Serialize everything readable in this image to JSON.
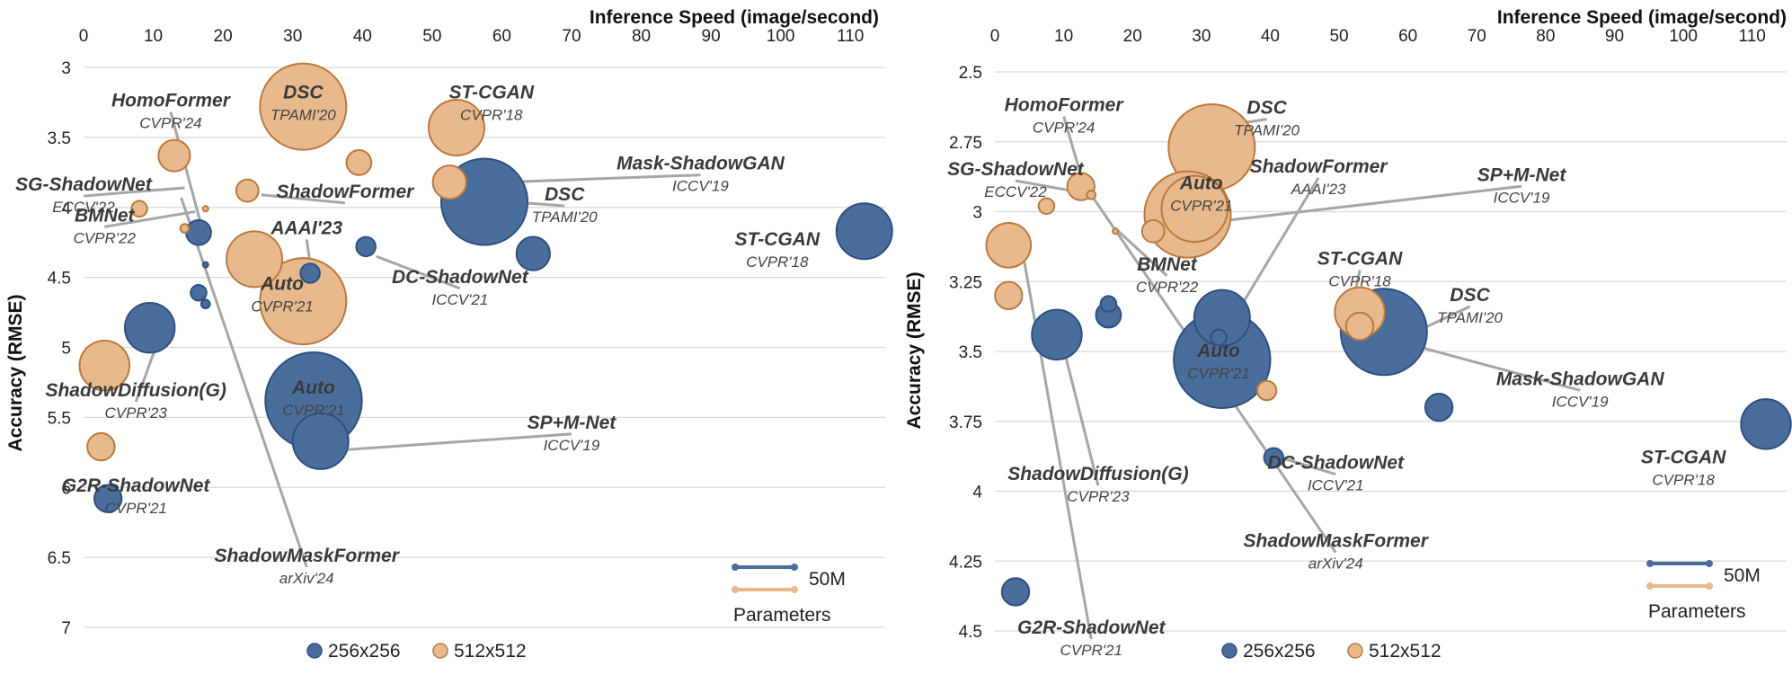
{
  "colors": {
    "c256": "#4a6e9c",
    "c256_stroke": "#2f4f7f",
    "c512": "#e8b98c",
    "c512_stroke": "#b97a3e",
    "leader": "#a6a6a6"
  },
  "chart_data": [
    {
      "type": "scatter",
      "xlabel": "Inference Speed (image/second)",
      "ylabel": "Accuracy (RMSE)",
      "xlim": [
        0,
        115
      ],
      "ylim": [
        3,
        7
      ],
      "xticks": [
        "0",
        "10",
        "20",
        "30",
        "40",
        "50",
        "60",
        "70",
        "80",
        "90",
        "100",
        "110"
      ],
      "yticks": [
        "3",
        "3.5",
        "4",
        "4.5",
        "5",
        "5.5",
        "6",
        "6.5",
        "7"
      ],
      "legend": {
        "series": [
          "256x256",
          "512x512"
        ],
        "size_label": "50M",
        "size_title": "Parameters"
      },
      "points": [
        {
          "res": "512",
          "x": 31.5,
          "y": 3.28,
          "params": 60
        },
        {
          "res": "512",
          "x": 53.5,
          "y": 3.43,
          "params": 25
        },
        {
          "res": "512",
          "x": 13,
          "y": 3.63,
          "params": 8
        },
        {
          "res": "512",
          "x": 39.5,
          "y": 3.68,
          "params": 5
        },
        {
          "res": "512",
          "x": 52.5,
          "y": 3.82,
          "params": 9
        },
        {
          "res": "512",
          "x": 23.5,
          "y": 3.88,
          "params": 4
        },
        {
          "res": "512",
          "x": 8,
          "y": 4.01,
          "params": 2
        },
        {
          "res": "512",
          "x": 17.5,
          "y": 4.01,
          "params": 0.1
        },
        {
          "res": "512",
          "x": 14.5,
          "y": 4.15,
          "params": 0.6
        },
        {
          "res": "512",
          "x": 24.5,
          "y": 4.37,
          "params": 25
        },
        {
          "res": "512",
          "x": 31.5,
          "y": 4.67,
          "params": 60
        },
        {
          "res": "512",
          "x": 3,
          "y": 5.13,
          "params": 20
        },
        {
          "res": "512",
          "x": 2.5,
          "y": 5.71,
          "params": 6
        },
        {
          "res": "256",
          "x": 57.5,
          "y": 3.96,
          "params": 60
        },
        {
          "res": "256",
          "x": 112,
          "y": 4.17,
          "params": 25
        },
        {
          "res": "256",
          "x": 16.5,
          "y": 4.18,
          "params": 5
        },
        {
          "res": "256",
          "x": 40.5,
          "y": 4.28,
          "params": 3
        },
        {
          "res": "256",
          "x": 64.5,
          "y": 4.33,
          "params": 9
        },
        {
          "res": "256",
          "x": 17.5,
          "y": 4.41,
          "params": 0.1
        },
        {
          "res": "256",
          "x": 32.5,
          "y": 4.47,
          "params": 3
        },
        {
          "res": "256",
          "x": 16.5,
          "y": 4.61,
          "params": 2
        },
        {
          "res": "256",
          "x": 17.5,
          "y": 4.69,
          "params": 0.6
        },
        {
          "res": "256",
          "x": 9.5,
          "y": 4.86,
          "params": 20
        },
        {
          "res": "256",
          "x": 33,
          "y": 5.38,
          "params": 75
        },
        {
          "res": "256",
          "x": 34,
          "y": 5.67,
          "params": 25
        },
        {
          "res": "256",
          "x": 3.5,
          "y": 6.08,
          "params": 6
        }
      ],
      "annotations": [
        {
          "name": "DSC",
          "venue": "TPAMI'20",
          "lx": 31.5,
          "ly": 3.22,
          "ax": null,
          "ay": null
        },
        {
          "name": "HomoFormer",
          "venue": "CVPR'24",
          "lx": 12.5,
          "ly": 3.28,
          "ax": 17,
          "ay": 4.15
        },
        {
          "name": "ST-CGAN",
          "venue": "CVPR'18",
          "lx": 58.5,
          "ly": 3.22,
          "ax": null,
          "ay": null
        },
        {
          "name": "Mask-ShadowGAN",
          "venue": "ICCV'19",
          "lx": 88.5,
          "ly": 3.73,
          "ax": 55,
          "ay": 3.83
        },
        {
          "name": "SG-ShadowNet",
          "venue": "ECCV'22",
          "lx": 0,
          "ly": 3.88,
          "ax": 14.5,
          "ay": 3.86
        },
        {
          "name": "ShadowFormer",
          "venue": "",
          "lx": 37.5,
          "ly": 3.93,
          "ax": 25.5,
          "ay": 3.91
        },
        {
          "name": "DSC",
          "venue": "TPAMI'20",
          "lx": 69,
          "ly": 3.95,
          "ax": 61,
          "ay": 3.96
        },
        {
          "name": "BMNet",
          "venue": "CVPR'22",
          "lx": 3,
          "ly": 4.1,
          "ax": 16,
          "ay": 4.03
        },
        {
          "name": "ST-CGAN",
          "venue": "CVPR'18",
          "lx": 99.5,
          "ly": 4.27,
          "ax": null,
          "ay": null
        },
        {
          "name": "AAAI'23",
          "venue": "",
          "lx": 32,
          "ly": 4.19,
          "ax": 32.5,
          "ay": 4.4
        },
        {
          "name": "DC-ShadowNet",
          "venue": "ICCV'21",
          "lx": 54,
          "ly": 4.54,
          "ax": 42,
          "ay": 4.35
        },
        {
          "name": "Auto",
          "venue": "CVPR'21",
          "lx": 28.5,
          "ly": 4.59,
          "ax": null,
          "ay": null
        },
        {
          "name": "ShadowDiffusion(G)",
          "venue": "CVPR'23",
          "lx": 7.5,
          "ly": 5.35,
          "ax": 10.5,
          "ay": 4.98
        },
        {
          "name": "Auto",
          "venue": "CVPR'21",
          "lx": 33,
          "ly": 5.33,
          "ax": null,
          "ay": null
        },
        {
          "name": "SP+M-Net",
          "venue": "ICCV'19",
          "lx": 70,
          "ly": 5.58,
          "ax": 35,
          "ay": 5.74
        },
        {
          "name": "G2R-ShadowNet",
          "venue": "CVPR'21",
          "lx": 7.5,
          "ly": 6.03,
          "ax": null,
          "ay": null
        },
        {
          "name": "ShadowMaskFormer",
          "venue": "arXiv'24",
          "lx": 32,
          "ly": 6.53,
          "ax": 14,
          "ay": 3.93
        }
      ]
    },
    {
      "type": "scatter",
      "xlabel": "Inference Speed (image/second)",
      "ylabel": "Accuracy (RMSE)",
      "xlim": [
        0,
        115
      ],
      "ylim": [
        2.5,
        4.5
      ],
      "xticks": [
        "0",
        "10",
        "20",
        "30",
        "40",
        "50",
        "60",
        "70",
        "80",
        "90",
        "100",
        "110"
      ],
      "yticks": [
        "2.5",
        "2.75",
        "3",
        "3.25",
        "3.5",
        "3.75",
        "4",
        "4.25",
        "4.5"
      ],
      "legend": {
        "series": [
          "256x256",
          "512x512"
        ],
        "size_label": "50M",
        "size_title": "Parameters"
      },
      "points": [
        {
          "res": "512",
          "x": 31.5,
          "y": 2.77,
          "params": 60
        },
        {
          "res": "512",
          "x": 12.5,
          "y": 2.91,
          "params": 6
        },
        {
          "res": "512",
          "x": 14,
          "y": 2.94,
          "params": 0.6
        },
        {
          "res": "512",
          "x": 7.5,
          "y": 2.98,
          "params": 2
        },
        {
          "res": "512",
          "x": 29,
          "y": 2.99,
          "params": 35
        },
        {
          "res": "512",
          "x": 28,
          "y": 3.01,
          "params": 60
        },
        {
          "res": "512",
          "x": 17.5,
          "y": 3.07,
          "params": 0.1
        },
        {
          "res": "512",
          "x": 23,
          "y": 3.07,
          "params": 4
        },
        {
          "res": "512",
          "x": 2,
          "y": 3.12,
          "params": 16
        },
        {
          "res": "512",
          "x": 2,
          "y": 3.3,
          "params": 6
        },
        {
          "res": "512",
          "x": 53,
          "y": 3.36,
          "params": 20
        },
        {
          "res": "512",
          "x": 53,
          "y": 3.41,
          "params": 6
        },
        {
          "res": "512",
          "x": 39.5,
          "y": 3.64,
          "params": 3
        },
        {
          "res": "256",
          "x": 16.5,
          "y": 3.33,
          "params": 2
        },
        {
          "res": "256",
          "x": 16.5,
          "y": 3.37,
          "params": 5
        },
        {
          "res": "256",
          "x": 33,
          "y": 3.38,
          "params": 25
        },
        {
          "res": "256",
          "x": 9,
          "y": 3.44,
          "params": 20
        },
        {
          "res": "256",
          "x": 56.5,
          "y": 3.43,
          "params": 60
        },
        {
          "res": "256",
          "x": 32.5,
          "y": 3.45,
          "params": 2
        },
        {
          "res": "256",
          "x": 33,
          "y": 3.53,
          "params": 75
        },
        {
          "res": "256",
          "x": 64.5,
          "y": 3.7,
          "params": 6
        },
        {
          "res": "256",
          "x": 112,
          "y": 3.76,
          "params": 20
        },
        {
          "res": "256",
          "x": 40.5,
          "y": 3.88,
          "params": 3
        },
        {
          "res": "256",
          "x": 3,
          "y": 4.36,
          "params": 6
        }
      ],
      "annotations": [
        {
          "name": "HomoFormer",
          "venue": "CVPR'24",
          "lx": 10,
          "ly": 2.64,
          "ax": 12.5,
          "ay": 2.87
        },
        {
          "name": "DSC",
          "venue": "TPAMI'20",
          "lx": 39.5,
          "ly": 2.65,
          "ax": 34,
          "ay": 2.69
        },
        {
          "name": "SG-ShadowNet",
          "venue": "ECCV'22",
          "lx": 3,
          "ly": 2.87,
          "ax": 14.5,
          "ay": 2.94
        },
        {
          "name": "Auto",
          "venue": "CVPR'21",
          "lx": 30,
          "ly": 2.92,
          "ax": null,
          "ay": null
        },
        {
          "name": "ShadowFormer",
          "venue": "AAAI'23",
          "lx": 47,
          "ly": 2.86,
          "ax": 33,
          "ay": 3.45
        },
        {
          "name": "SP+M-Net",
          "venue": "ICCV'19",
          "lx": 76.5,
          "ly": 2.89,
          "ax": 23.5,
          "ay": 3.06
        },
        {
          "name": "BMNet",
          "venue": "CVPR'22",
          "lx": 25,
          "ly": 3.21,
          "ax": 17.5,
          "ay": 3.06
        },
        {
          "name": "ST-CGAN",
          "venue": "CVPR'18",
          "lx": 53,
          "ly": 3.19,
          "ax": 52,
          "ay": 3.33
        },
        {
          "name": "DSC",
          "venue": "TPAMI'20",
          "lx": 69,
          "ly": 3.32,
          "ax": 62,
          "ay": 3.42
        },
        {
          "name": "Auto",
          "venue": "CVPR'21",
          "lx": 32.5,
          "ly": 3.52,
          "ax": null,
          "ay": null
        },
        {
          "name": "Mask-ShadowGAN",
          "venue": "ICCV'19",
          "lx": 85,
          "ly": 3.62,
          "ax": 55,
          "ay": 3.44
        },
        {
          "name": "DC-ShadowNet",
          "venue": "ICCV'21",
          "lx": 49.5,
          "ly": 3.92,
          "ax": 41.5,
          "ay": 3.88
        },
        {
          "name": "ShadowDiffusion(G)",
          "venue": "CVPR'23",
          "lx": 15,
          "ly": 3.96,
          "ax": 10,
          "ay": 3.49
        },
        {
          "name": "ST-CGAN",
          "venue": "CVPR'18",
          "lx": 100,
          "ly": 3.9,
          "ax": null,
          "ay": null
        },
        {
          "name": "ShadowMaskFormer",
          "venue": "arXiv'24",
          "lx": 49.5,
          "ly": 4.2,
          "ax": 14,
          "ay": 2.94
        },
        {
          "name": "G2R-ShadowNet",
          "venue": "CVPR'21",
          "lx": 14,
          "ly": 4.51,
          "ax": 4,
          "ay": 3.14
        }
      ]
    }
  ]
}
